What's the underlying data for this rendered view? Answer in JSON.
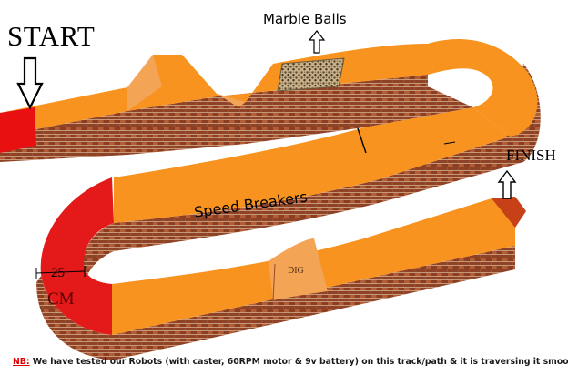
{
  "labels": {
    "start": "START",
    "finish": "FINISH",
    "marble_balls": "Marble Balls",
    "speed_breakers": "Speed Breakers",
    "dig": "DIG",
    "width_value": "25",
    "width_unit": "CM"
  },
  "note": {
    "prefix": "NB:",
    "text": " We have tested our Robots (with caster, 60RPM motor & 9v battery) on this track/path & it is traversing it smoothly"
  },
  "colors": {
    "track_orange": "#F7931E",
    "track_side": "#9b4a2c",
    "start_red": "#e81010",
    "curve_red": "#e41a1a",
    "ramp": "#f4a455",
    "note_red": "#e00000"
  },
  "icons": [
    "down-arrow-icon",
    "up-arrow-icon",
    "up-arrow-icon"
  ]
}
